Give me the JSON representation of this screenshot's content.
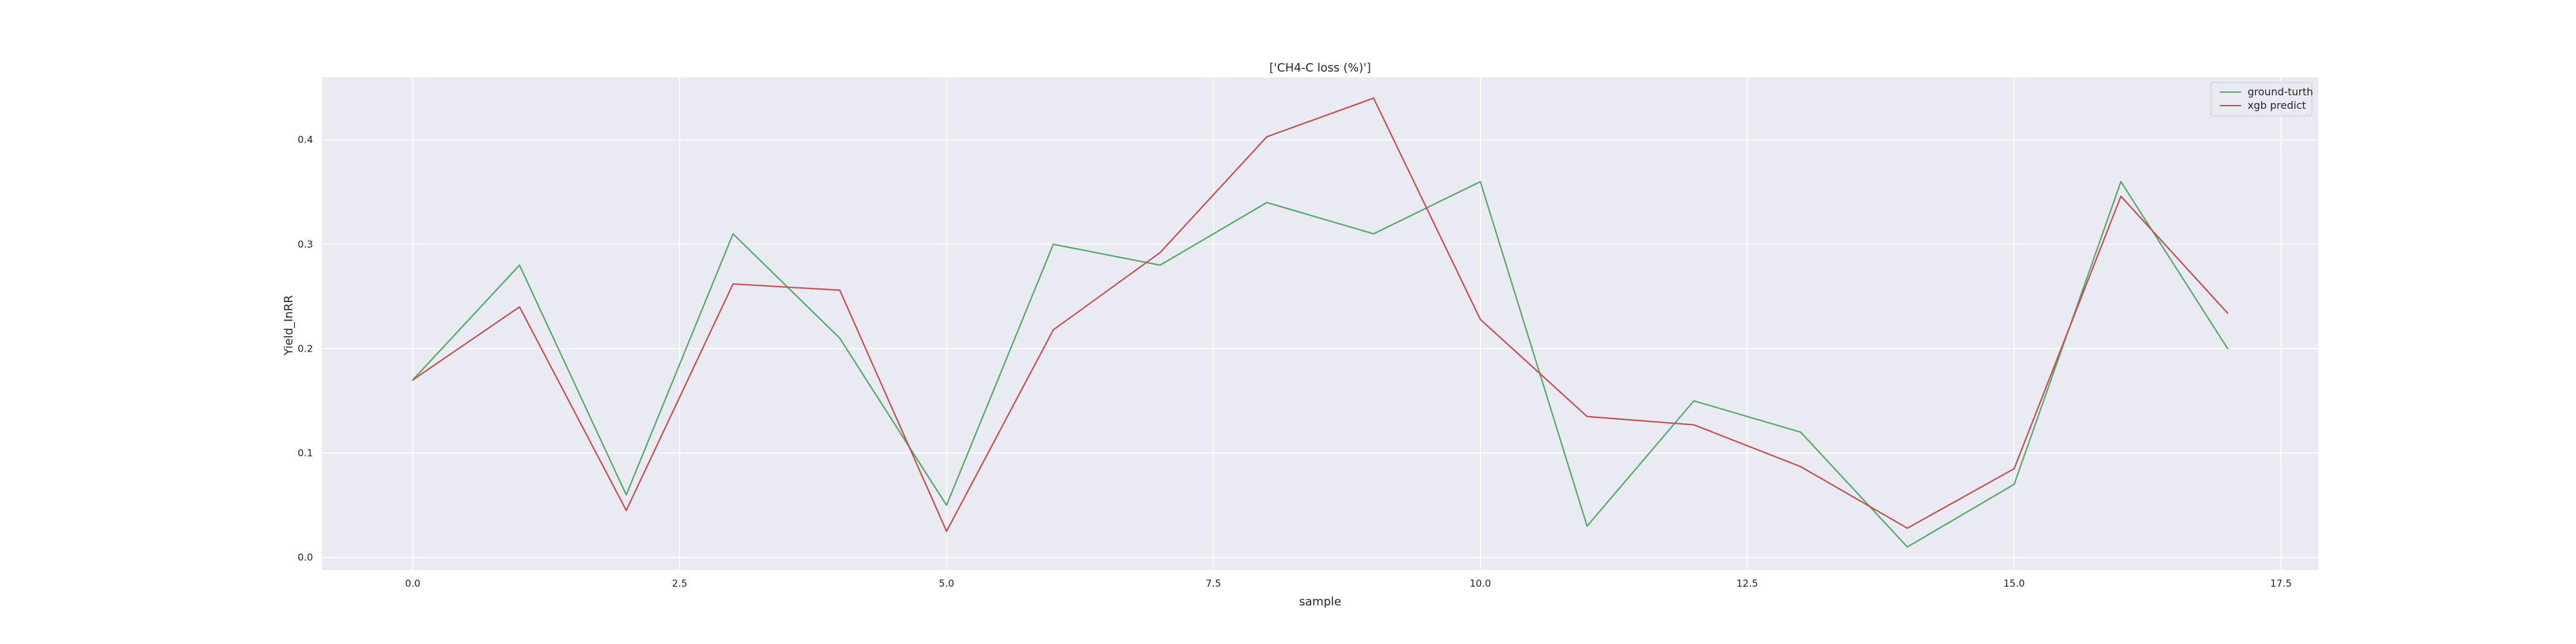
{
  "chart_data": {
    "type": "line",
    "title": "['CH4-C loss (%)']",
    "xlabel": "sample",
    "ylabel": "Yield_InRR",
    "xlim": [
      -0.85,
      17.85
    ],
    "ylim": [
      -0.012,
      0.46
    ],
    "xticks": [
      0.0,
      2.5,
      5.0,
      7.5,
      10.0,
      12.5,
      15.0,
      17.5
    ],
    "xtick_labels": [
      "0.0",
      "2.5",
      "5.0",
      "7.5",
      "10.0",
      "12.5",
      "15.0",
      "17.5"
    ],
    "yticks": [
      0.0,
      0.1,
      0.2,
      0.3,
      0.4
    ],
    "ytick_labels": [
      "0.0",
      "0.1",
      "0.2",
      "0.3",
      "0.4"
    ],
    "grid": true,
    "legend_position": "top-right",
    "x": [
      0,
      1,
      2,
      3,
      4,
      5,
      6,
      7,
      8,
      9,
      10,
      11,
      12,
      13,
      14,
      15,
      16,
      17
    ],
    "series": [
      {
        "name": "ground-turth",
        "color": "#55a868",
        "values": [
          0.17,
          0.28,
          0.06,
          0.31,
          0.21,
          0.05,
          0.3,
          0.28,
          0.34,
          0.31,
          0.36,
          0.03,
          0.15,
          0.12,
          0.01,
          0.07,
          0.36,
          0.2
        ]
      },
      {
        "name": "xgb predict",
        "color": "#c44e52",
        "values": [
          0.17,
          0.24,
          0.045,
          0.262,
          0.256,
          0.025,
          0.218,
          0.292,
          0.403,
          0.44,
          0.228,
          0.135,
          0.127,
          0.087,
          0.028,
          0.085,
          0.346,
          0.234
        ]
      }
    ]
  },
  "colors": {
    "plot_background": "#eaeaf2",
    "grid": "#ffffff",
    "text": "#262626"
  }
}
